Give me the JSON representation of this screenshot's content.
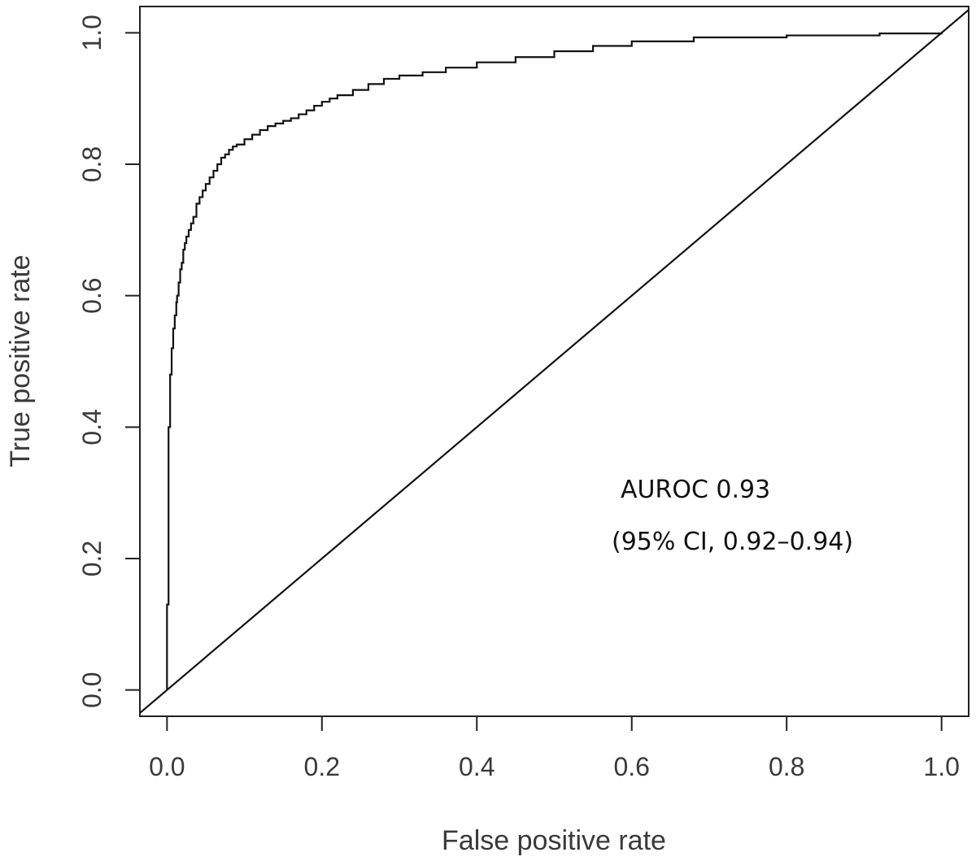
{
  "chart_data": {
    "type": "line",
    "title": "",
    "xlabel": "False positive rate",
    "ylabel": "True positive rate",
    "xlim": [
      -0.035,
      1.035
    ],
    "ylim": [
      -0.04,
      1.04
    ],
    "x_ticks": [
      "0.0",
      "0.2",
      "0.4",
      "0.6",
      "0.8",
      "1.0"
    ],
    "y_ticks": [
      "0.0",
      "0.2",
      "0.4",
      "0.6",
      "0.8",
      "1.0"
    ],
    "grid": false,
    "annotations": [
      "AUROC 0.93",
      "(95% CI, 0.92–0.94)"
    ],
    "series": [
      {
        "style": "step",
        "color": "#111111",
        "x": [
          0.0,
          0.0,
          0.002,
          0.002,
          0.004,
          0.004,
          0.006,
          0.006,
          0.008,
          0.008,
          0.01,
          0.01,
          0.012,
          0.013,
          0.015,
          0.017,
          0.019,
          0.021,
          0.023,
          0.025,
          0.028,
          0.031,
          0.034,
          0.038,
          0.042,
          0.046,
          0.05,
          0.055,
          0.06,
          0.065,
          0.07,
          0.075,
          0.08,
          0.085,
          0.09,
          0.1,
          0.11,
          0.12,
          0.13,
          0.14,
          0.15,
          0.16,
          0.17,
          0.18,
          0.19,
          0.2,
          0.21,
          0.22,
          0.24,
          0.26,
          0.28,
          0.3,
          0.33,
          0.36,
          0.4,
          0.45,
          0.5,
          0.55,
          0.6,
          0.68,
          0.8,
          0.92,
          1.0
        ],
        "y": [
          0.0,
          0.13,
          0.13,
          0.4,
          0.4,
          0.48,
          0.48,
          0.52,
          0.52,
          0.55,
          0.55,
          0.57,
          0.59,
          0.6,
          0.62,
          0.64,
          0.65,
          0.67,
          0.68,
          0.69,
          0.7,
          0.71,
          0.72,
          0.74,
          0.75,
          0.76,
          0.77,
          0.78,
          0.79,
          0.8,
          0.81,
          0.815,
          0.822,
          0.827,
          0.83,
          0.838,
          0.845,
          0.852,
          0.858,
          0.862,
          0.866,
          0.87,
          0.876,
          0.882,
          0.889,
          0.895,
          0.9,
          0.905,
          0.913,
          0.922,
          0.93,
          0.935,
          0.94,
          0.947,
          0.955,
          0.963,
          0.972,
          0.98,
          0.987,
          0.993,
          0.996,
          0.999,
          1.0
        ]
      },
      {
        "style": "line",
        "color": "#111111",
        "x": [
          -0.035,
          1.035
        ],
        "y": [
          -0.035,
          1.035
        ]
      }
    ]
  }
}
